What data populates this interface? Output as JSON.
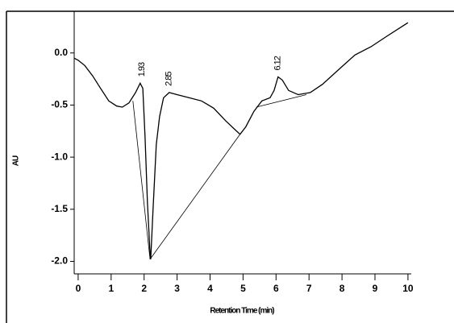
{
  "chart_data": {
    "type": "line",
    "xlabel": "Retention Time (min)",
    "ylabel": "AU",
    "x": [
      -0.12,
      0,
      0.2,
      0.44,
      0.68,
      0.93,
      1.17,
      1.34,
      1.54,
      1.74,
      1.88,
      1.96,
      2.03,
      2.1,
      2.18,
      2.2,
      2.27,
      2.37,
      2.47,
      2.59,
      2.76,
      3.0,
      3.37,
      3.74,
      4.11,
      4.47,
      4.77,
      4.91,
      5.08,
      5.33,
      5.57,
      5.82,
      5.94,
      6.06,
      6.19,
      6.38,
      6.67,
      7.04,
      7.41,
      7.9,
      8.39,
      8.88,
      9.36,
      9.85,
      10.0
    ],
    "series": [
      {
        "color": "#000000",
        "values": [
          -0.05,
          -0.07,
          -0.12,
          -0.22,
          -0.34,
          -0.46,
          -0.51,
          -0.52,
          -0.48,
          -0.38,
          -0.29,
          -0.34,
          -0.81,
          -1.43,
          -1.93,
          -1.98,
          -1.5,
          -0.88,
          -0.61,
          -0.43,
          -0.38,
          -0.4,
          -0.43,
          -0.46,
          -0.53,
          -0.65,
          -0.74,
          -0.78,
          -0.71,
          -0.56,
          -0.46,
          -0.43,
          -0.36,
          -0.23,
          -0.26,
          -0.36,
          -0.4,
          -0.38,
          -0.3,
          -0.16,
          -0.02,
          0.06,
          0.16,
          0.26,
          0.29
        ]
      }
    ],
    "baselines": [
      {
        "x": [
          1.66,
          2.18
        ],
        "y": [
          -0.46,
          -1.98
        ]
      },
      {
        "x": [
          2.18,
          4.91
        ],
        "y": [
          -1.98,
          -0.78
        ]
      },
      {
        "x": [
          5.4,
          6.92
        ],
        "y": [
          -0.52,
          -0.4
        ]
      }
    ],
    "annotations": [
      {
        "text": "1.93",
        "x": 1.93,
        "y": -0.29
      },
      {
        "text": "2.85",
        "x": 2.75,
        "y": -0.38
      },
      {
        "text": "6.12",
        "x": 6.06,
        "y": -0.23
      }
    ],
    "xlim": [
      -0.12,
      10.1
    ],
    "ylim": [
      -2.12,
      0.4
    ],
    "xticks": [
      0,
      1,
      2,
      3,
      4,
      5,
      6,
      7,
      8,
      9,
      10
    ],
    "yticks": [
      {
        "value": 0,
        "label": "0.0"
      },
      -0.5,
      {
        "value": -1,
        "label": "-1.0"
      },
      -1.5,
      {
        "value": -2,
        "label": "-2.0"
      }
    ]
  }
}
